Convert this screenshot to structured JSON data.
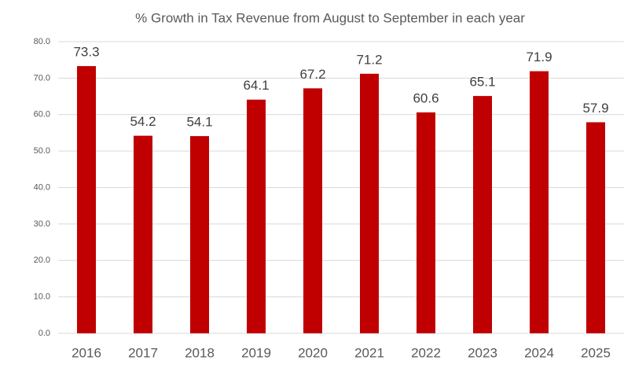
{
  "chart_data": {
    "type": "bar",
    "title": "% Growth in Tax Revenue from August to September in each year",
    "categories": [
      "2016",
      "2017",
      "2018",
      "2019",
      "2020",
      "2021",
      "2022",
      "2023",
      "2024",
      "2025"
    ],
    "values": [
      73.3,
      54.2,
      54.1,
      64.1,
      67.2,
      71.2,
      60.6,
      65.1,
      71.9,
      57.9
    ],
    "color": "#c00000",
    "ylim": [
      0,
      80
    ],
    "yticks": [
      {
        "value": 0,
        "label": "0.0"
      },
      {
        "value": 10,
        "label": "10.0"
      },
      {
        "value": 20,
        "label": "20.0"
      },
      {
        "value": 30,
        "label": "30.0"
      },
      {
        "value": 40,
        "label": "40.0"
      },
      {
        "value": 50,
        "label": "50.0"
      },
      {
        "value": 60,
        "label": "60.0"
      },
      {
        "value": 70,
        "label": "70.0"
      },
      {
        "value": 80,
        "label": "80.0"
      }
    ],
    "grid": true
  }
}
